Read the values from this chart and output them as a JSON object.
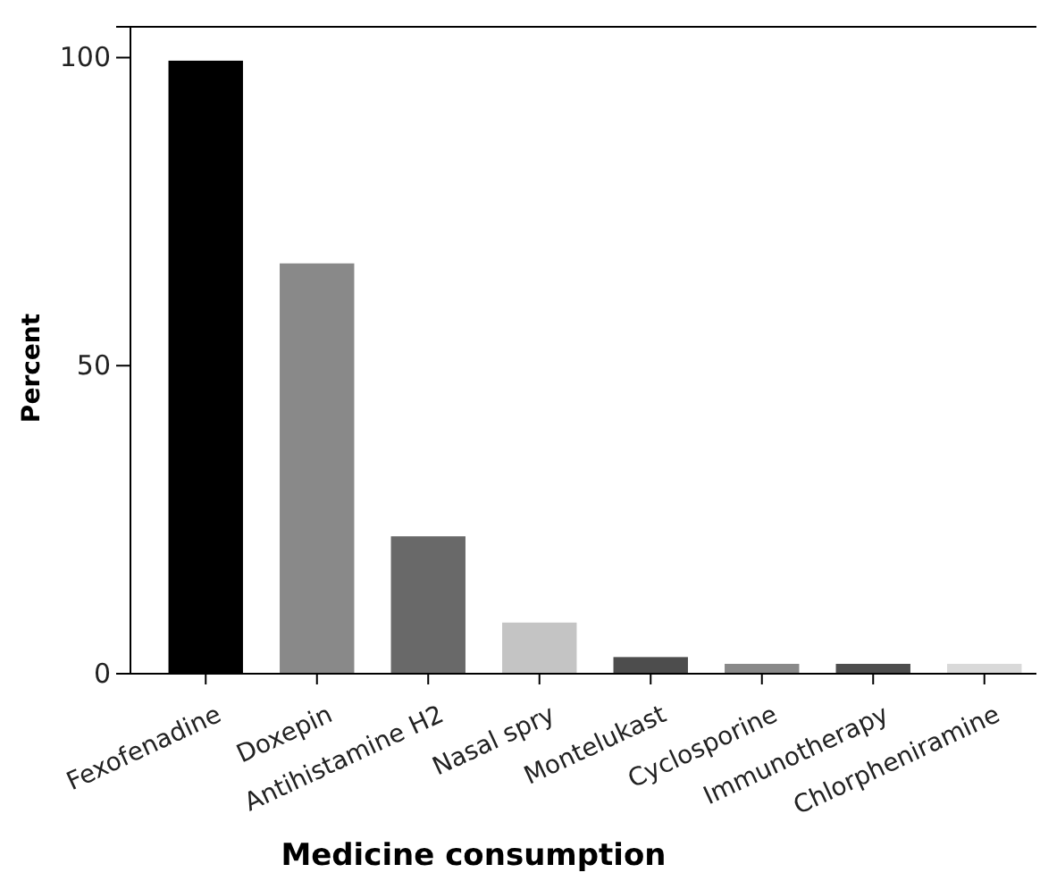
{
  "chart_data": {
    "type": "bar",
    "xlabel": "Medicine consumption",
    "ylabel": "Percent",
    "categories": [
      "Fexofenadine",
      "Doxepin",
      "Antihistamine H2",
      "Nasal spry",
      "Montelukast",
      "Cyclosporine",
      "Immunotherapy",
      "Chlorpheniramine"
    ],
    "values": [
      99.5,
      66.6,
      22.3,
      8.3,
      2.7,
      1.6,
      1.6,
      1.6
    ],
    "colors": [
      "#000000",
      "#898989",
      "#696969",
      "#c4c4c4",
      "#4d4d4d",
      "#898989",
      "#4d4d4d",
      "#d9d9d9"
    ],
    "ylim": [
      0,
      105
    ],
    "yticks": [
      0,
      50,
      100
    ],
    "grid": false
  }
}
